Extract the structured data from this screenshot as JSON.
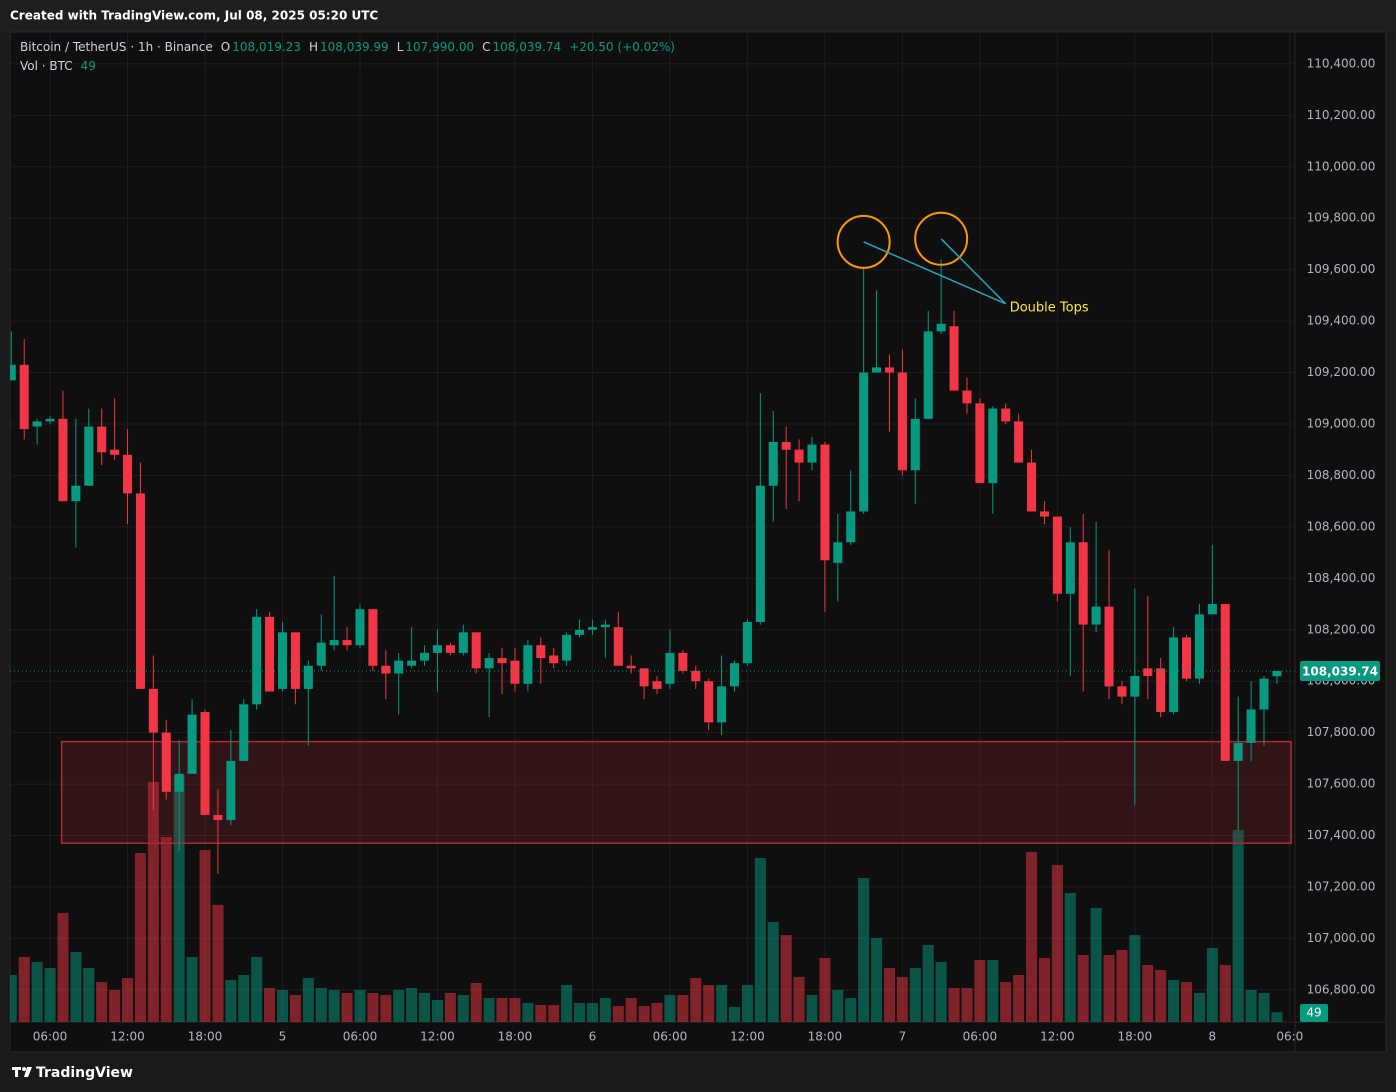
{
  "header": {
    "title": "Created with TradingView.com, Jul 08, 2025 05:20 UTC"
  },
  "legend": {
    "symbol": "Bitcoin / TetherUS · 1h · Binance",
    "fields": [
      {
        "key": "O",
        "label": "108,019.23"
      },
      {
        "key": "H",
        "label": "108,039.99"
      },
      {
        "key": "L",
        "label": "107,990.00"
      },
      {
        "key": "C",
        "label": "108,039.74"
      }
    ],
    "change": "+20.50 (+0.02%)",
    "volume_title": "Vol · BTC",
    "volume": "49"
  },
  "chart_data": {
    "type": "candlestick",
    "up_color": "#089981",
    "down_color": "#f23645",
    "grid": true,
    "open": [
      109170,
      109230,
      108990,
      109010,
      109020,
      108700,
      108760,
      108990,
      108900,
      108880,
      108730,
      107970,
      107800,
      107570,
      107640,
      107880,
      107480,
      107460,
      107690,
      107910,
      108250,
      107970,
      108190,
      107970,
      108060,
      108140,
      108160,
      108140,
      108280,
      108060,
      108030,
      108060,
      108080,
      108110,
      108140,
      108110,
      108190,
      108050,
      108090,
      108080,
      107990,
      108140,
      108100,
      108080,
      108180,
      108200,
      108210,
      108210,
      108060,
      108050,
      108000,
      107990,
      108110,
      108040,
      108000,
      107840,
      107980,
      108070,
      108230,
      108760,
      108930,
      108900,
      108850,
      108920,
      108460,
      108540,
      108660,
      109200,
      109220,
      109200,
      108820,
      109020,
      109360,
      109380,
      109130,
      109080,
      108770,
      109060,
      109010,
      108850,
      108660,
      108640,
      108340,
      108540,
      108220,
      108290,
      107980,
      107940,
      108050,
      108050,
      107880,
      108170,
      108010,
      108260,
      108300,
      107690,
      107760,
      107890,
      108019.23
    ],
    "high": [
      109360,
      109330,
      109020,
      109030,
      109130,
      109020,
      109060,
      109060,
      109100,
      108980,
      108850,
      108100,
      107850,
      107770,
      107930,
      107890,
      107580,
      107810,
      107930,
      108280,
      108270,
      108230,
      108190,
      108080,
      108260,
      108410,
      108210,
      108300,
      108280,
      108120,
      108110,
      108210,
      108140,
      108200,
      108150,
      108220,
      108190,
      108110,
      108130,
      108130,
      108160,
      108170,
      108130,
      108190,
      108240,
      108240,
      108240,
      108270,
      108100,
      108050,
      108020,
      108200,
      108120,
      108060,
      108010,
      108100,
      108080,
      108240,
      109120,
      109050,
      108990,
      108940,
      108950,
      108930,
      108650,
      108820,
      109610,
      109520,
      109270,
      109290,
      109100,
      109440,
      109640,
      109440,
      109180,
      109100,
      109070,
      109080,
      109040,
      108900,
      108700,
      108640,
      108600,
      108650,
      108620,
      108510,
      108000,
      108360,
      108330,
      108090,
      108210,
      108180,
      108300,
      108530,
      108300,
      107940,
      108000,
      108020,
      108039.99
    ],
    "low": [
      109170,
      108940,
      108920,
      109000,
      108700,
      108520,
      108760,
      108840,
      108860,
      108610,
      107970,
      107500,
      107540,
      107340,
      107640,
      107480,
      107250,
      107440,
      107690,
      107890,
      107960,
      107960,
      107910,
      107750,
      108040,
      108120,
      108120,
      108130,
      108040,
      107930,
      107870,
      108050,
      108060,
      107960,
      108100,
      108100,
      108030,
      107860,
      107950,
      107960,
      107960,
      107990,
      108050,
      108060,
      108170,
      108180,
      108090,
      108060,
      108030,
      107930,
      107950,
      107970,
      108030,
      107970,
      107810,
      107790,
      107960,
      108060,
      108220,
      108620,
      108670,
      108700,
      108820,
      108270,
      108310,
      108530,
      108650,
      109200,
      108970,
      108800,
      108690,
      109020,
      109350,
      109130,
      109040,
      108770,
      108650,
      109000,
      108850,
      108660,
      108610,
      108310,
      108020,
      107960,
      108190,
      107930,
      107910,
      107520,
      107930,
      107860,
      107870,
      108000,
      107990,
      108260,
      107690,
      107420,
      107690,
      107750,
      107990
    ],
    "close": [
      109230,
      108980,
      109010,
      109020,
      108700,
      108760,
      108990,
      108890,
      108880,
      108730,
      107970,
      107800,
      107570,
      107640,
      107870,
      107480,
      107460,
      107690,
      107910,
      108250,
      107960,
      108190,
      107970,
      108060,
      108150,
      108160,
      108140,
      108280,
      108060,
      108030,
      108080,
      108080,
      108110,
      108140,
      108110,
      108190,
      108050,
      108090,
      108070,
      107990,
      108140,
      108090,
      108070,
      108180,
      108200,
      108210,
      108220,
      108060,
      108050,
      107980,
      107970,
      108110,
      108040,
      108000,
      107840,
      107980,
      108070,
      108230,
      108760,
      108930,
      108900,
      108850,
      108920,
      108470,
      108540,
      108660,
      109200,
      109220,
      109200,
      108820,
      109020,
      109360,
      109390,
      109130,
      109080,
      108770,
      109060,
      109010,
      108850,
      108660,
      108640,
      108340,
      108540,
      108220,
      108290,
      107980,
      107940,
      108020,
      108020,
      107880,
      108170,
      108010,
      108260,
      108300,
      107690,
      107760,
      107890,
      108010,
      108039.74
    ],
    "volume": [
      235,
      325,
      300,
      270,
      545,
      350,
      270,
      200,
      160,
      220,
      845,
      1200,
      925,
      1235,
      325,
      860,
      585,
      210,
      235,
      325,
      170,
      160,
      135,
      220,
      170,
      160,
      145,
      160,
      145,
      135,
      160,
      170,
      145,
      110,
      145,
      135,
      195,
      120,
      120,
      120,
      95,
      85,
      85,
      185,
      95,
      95,
      120,
      80,
      120,
      80,
      95,
      135,
      135,
      220,
      185,
      185,
      75,
      185,
      820,
      500,
      435,
      225,
      135,
      320,
      160,
      120,
      720,
      420,
      270,
      225,
      270,
      385,
      300,
      170,
      170,
      310,
      310,
      200,
      235,
      850,
      320,
      785,
      645,
      335,
      570,
      335,
      360,
      435,
      285,
      260,
      210,
      200,
      145,
      370,
      285,
      960,
      160,
      145,
      49
    ],
    "xlim": [
      -0.1,
      99.4
    ],
    "xticks": [
      {
        "value": 3,
        "label": "06:00"
      },
      {
        "value": 9,
        "label": "12:00"
      },
      {
        "value": 15,
        "label": "18:00"
      },
      {
        "value": 21,
        "label": "5"
      },
      {
        "value": 27,
        "label": "06:00"
      },
      {
        "value": 33,
        "label": "12:00"
      },
      {
        "value": 39,
        "label": "18:00"
      },
      {
        "value": 45,
        "label": "6"
      },
      {
        "value": 51,
        "label": "06:00"
      },
      {
        "value": 57,
        "label": "12:00"
      },
      {
        "value": 63,
        "label": "18:00"
      },
      {
        "value": 69,
        "label": "7"
      },
      {
        "value": 75,
        "label": "06:00"
      },
      {
        "value": 81,
        "label": "12:00"
      },
      {
        "value": 87,
        "label": "18:00"
      },
      {
        "value": 93,
        "label": "8"
      },
      {
        "value": 99,
        "label": "06:0"
      }
    ],
    "ylim": [
      106675,
      110524
    ],
    "yticks": [
      {
        "value": 106800,
        "label": "106,800.00"
      },
      {
        "value": 107000,
        "label": "107,000.00"
      },
      {
        "value": 107200,
        "label": "107,200.00"
      },
      {
        "value": 107400,
        "label": "107,400.00"
      },
      {
        "value": 107600,
        "label": "107,600.00"
      },
      {
        "value": 107800,
        "label": "107,800.00"
      },
      {
        "value": 108000,
        "label": "108,000.00"
      },
      {
        "value": 108200,
        "label": "108,200.00"
      },
      {
        "value": 108400,
        "label": "108,400.00"
      },
      {
        "value": 108600,
        "label": "108,600.00"
      },
      {
        "value": 108800,
        "label": "108,800.00"
      },
      {
        "value": 109000,
        "label": "109,000.00"
      },
      {
        "value": 109200,
        "label": "109,200.00"
      },
      {
        "value": 109400,
        "label": "109,400.00"
      },
      {
        "value": 109600,
        "label": "109,600.00"
      },
      {
        "value": 109800,
        "label": "109,800.00"
      },
      {
        "value": 110000,
        "label": "110,000.00"
      },
      {
        "value": 110200,
        "label": "110,200.00"
      },
      {
        "value": 110400,
        "label": "110,400.00"
      }
    ],
    "last_price": {
      "value": 108039.74,
      "label": "108,039.74"
    },
    "zones": [
      {
        "x0": 3.9,
        "x1": 99.1,
        "y0": 107370,
        "y1": 107765,
        "color": "#b22833"
      }
    ],
    "annotations": [
      {
        "text": "Double Tops",
        "circle_color": "#ff9800",
        "line_color": "#26a6b8",
        "text_color": "#ffeb3b",
        "points": [
          {
            "x": 66,
            "y": 109708
          },
          {
            "x": 72,
            "y": 109720
          }
        ],
        "target": {
          "x": 77,
          "y": 109467
        }
      }
    ]
  },
  "footer": {
    "brand": "TradingView"
  }
}
